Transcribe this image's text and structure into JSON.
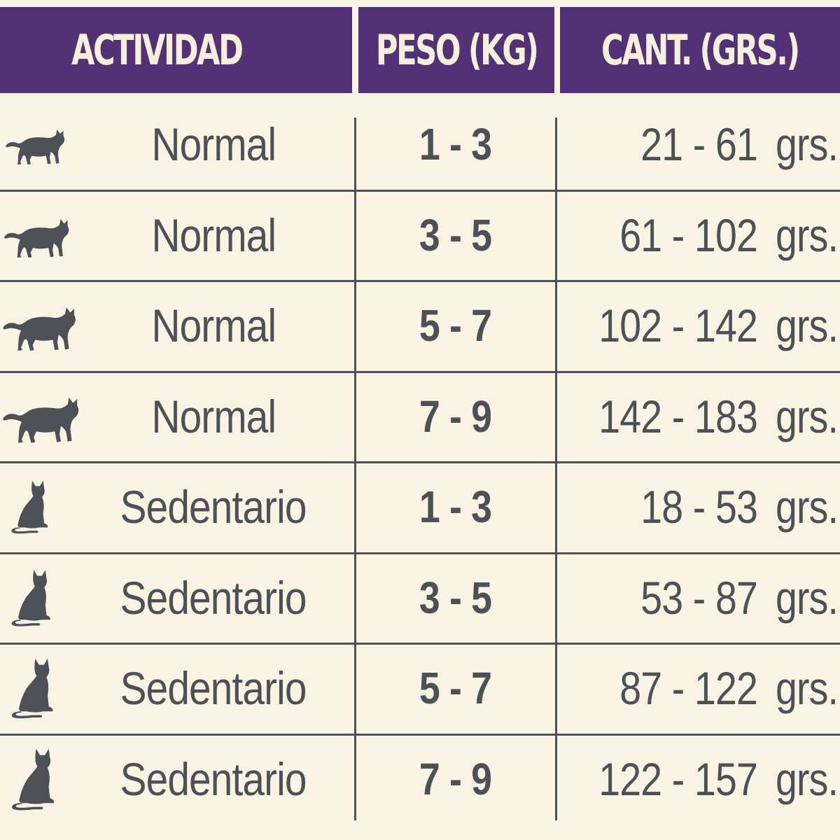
{
  "header": {
    "activity_label": "ACTIVIDAD",
    "weight_label": "PESO (KG)",
    "quantity_label": "CANT. (GRS.)",
    "background_color": "#533176",
    "text_color": "#f6efdc"
  },
  "rows": [
    {
      "icon": "walking-cat-icon",
      "activity": "Normal",
      "weight": "1 - 3",
      "quantity": "21 - 61",
      "unit": "grs."
    },
    {
      "icon": "walking-cat-icon",
      "activity": "Normal",
      "weight": "3 - 5",
      "quantity": "61 - 102",
      "unit": "grs."
    },
    {
      "icon": "walking-cat-icon",
      "activity": "Normal",
      "weight": "5 - 7",
      "quantity": "102 - 142",
      "unit": "grs."
    },
    {
      "icon": "walking-cat-icon",
      "activity": "Normal",
      "weight": "7 - 9",
      "quantity": "142 - 183",
      "unit": "grs."
    },
    {
      "icon": "sitting-cat-icon",
      "activity": "Sedentario",
      "weight": "1 - 3",
      "quantity": "18 - 53",
      "unit": "grs."
    },
    {
      "icon": "sitting-cat-icon",
      "activity": "Sedentario",
      "weight": "3 - 5",
      "quantity": "53 - 87",
      "unit": "grs."
    },
    {
      "icon": "sitting-cat-icon",
      "activity": "Sedentario",
      "weight": "5 - 7",
      "quantity": "87 - 122",
      "unit": "grs."
    },
    {
      "icon": "sitting-cat-icon",
      "activity": "Sedentario",
      "weight": "7 - 9",
      "quantity": "122 - 157",
      "unit": "grs."
    }
  ],
  "colors": {
    "background": "#f8f3e3",
    "text": "#4d5057",
    "grid": "#4d5057"
  }
}
